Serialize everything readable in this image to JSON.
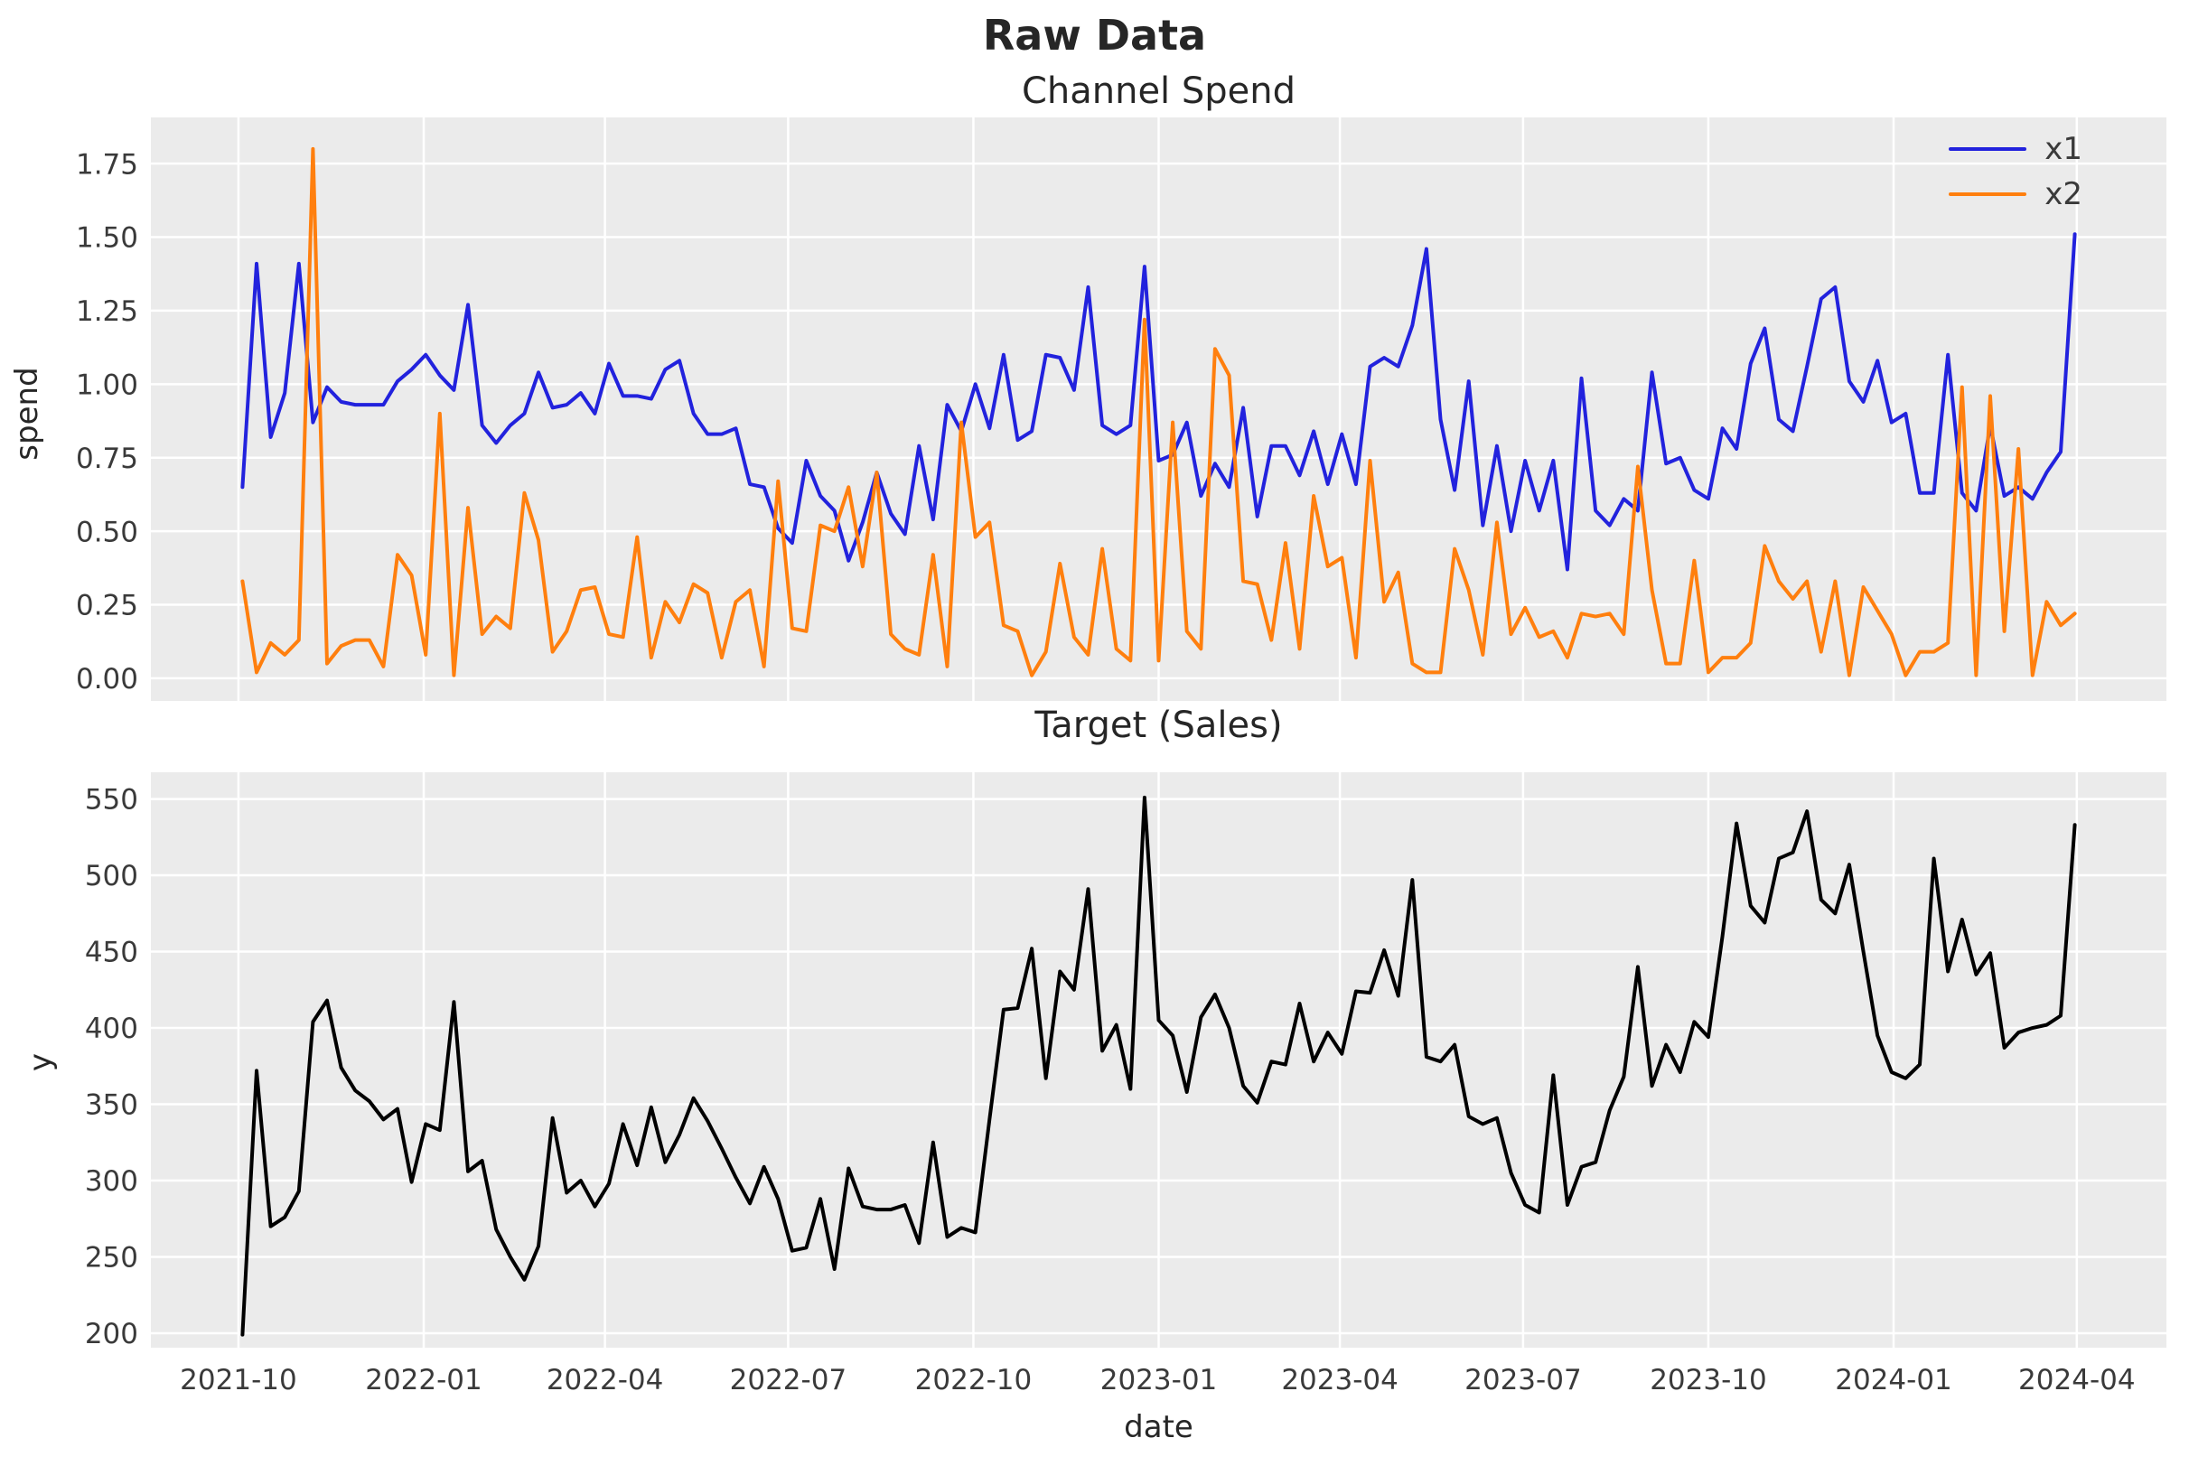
{
  "figure": {
    "suptitle": "Raw Data",
    "background": "#ffffff",
    "axes_background": "#ebebeb",
    "grid_color": "#ffffff",
    "tick_color": "#3a3a3a"
  },
  "chart_data": [
    {
      "type": "line",
      "id": "spend",
      "title": "Channel Spend",
      "ylabel": "spend",
      "grid": true,
      "legend_position": "upper right",
      "x_start_date": "2021-10-03",
      "x_freq": "weekly",
      "x_tick_labels": [
        "2021-10",
        "2022-01",
        "2022-04",
        "2022-07",
        "2022-10",
        "2023-01",
        "2023-04",
        "2023-07",
        "2023-10",
        "2024-01",
        "2024-04"
      ],
      "x_tick_day_offsets": [
        0,
        92,
        182,
        273,
        365,
        457,
        547,
        638,
        730,
        822,
        913
      ],
      "ylim": [
        -0.077,
        1.907
      ],
      "yticks": [
        0.0,
        0.25,
        0.5,
        0.75,
        1.0,
        1.25,
        1.5,
        1.75
      ],
      "ytick_labels": [
        "0.00",
        "0.25",
        "0.50",
        "0.75",
        "1.00",
        "1.25",
        "1.50",
        "1.75"
      ],
      "series": [
        {
          "name": "x1",
          "color": "#2222dd",
          "values": [
            0.65,
            1.41,
            0.82,
            0.97,
            1.41,
            0.87,
            0.99,
            0.94,
            0.93,
            0.93,
            0.93,
            1.01,
            1.05,
            1.1,
            1.03,
            0.98,
            1.27,
            0.86,
            0.8,
            0.86,
            0.9,
            1.04,
            0.92,
            0.93,
            0.97,
            0.9,
            1.07,
            0.96,
            0.96,
            0.95,
            1.05,
            1.08,
            0.9,
            0.83,
            0.83,
            0.85,
            0.66,
            0.65,
            0.51,
            0.46,
            0.74,
            0.62,
            0.57,
            0.4,
            0.53,
            0.7,
            0.56,
            0.49,
            0.79,
            0.54,
            0.93,
            0.84,
            1.0,
            0.85,
            1.1,
            0.81,
            0.84,
            1.1,
            1.09,
            0.98,
            1.33,
            0.86,
            0.83,
            0.86,
            1.4,
            0.74,
            0.76,
            0.87,
            0.62,
            0.73,
            0.65,
            0.92,
            0.55,
            0.79,
            0.79,
            0.69,
            0.84,
            0.66,
            0.83,
            0.66,
            1.06,
            1.09,
            1.06,
            1.2,
            1.46,
            0.88,
            0.64,
            1.01,
            0.52,
            0.79,
            0.5,
            0.74,
            0.57,
            0.74,
            0.37,
            1.02,
            0.57,
            0.52,
            0.61,
            0.57,
            1.04,
            0.73,
            0.75,
            0.64,
            0.61,
            0.85,
            0.78,
            1.07,
            1.19,
            0.88,
            0.84,
            1.06,
            1.29,
            1.33,
            1.01,
            0.94,
            1.08,
            0.87,
            0.9,
            0.63,
            0.63,
            1.1,
            0.63,
            0.57,
            0.86,
            0.62,
            0.65,
            0.61,
            0.7,
            0.77,
            1.51
          ]
        },
        {
          "name": "x2",
          "color": "#ff7f0e",
          "values": [
            0.33,
            0.02,
            0.12,
            0.08,
            0.13,
            1.8,
            0.05,
            0.11,
            0.13,
            0.13,
            0.04,
            0.42,
            0.35,
            0.08,
            0.9,
            0.01,
            0.58,
            0.15,
            0.21,
            0.17,
            0.63,
            0.47,
            0.09,
            0.16,
            0.3,
            0.31,
            0.15,
            0.14,
            0.48,
            0.07,
            0.26,
            0.19,
            0.32,
            0.29,
            0.07,
            0.26,
            0.3,
            0.04,
            0.67,
            0.17,
            0.16,
            0.52,
            0.5,
            0.65,
            0.38,
            0.7,
            0.15,
            0.1,
            0.08,
            0.42,
            0.04,
            0.87,
            0.48,
            0.53,
            0.18,
            0.16,
            0.01,
            0.09,
            0.39,
            0.14,
            0.08,
            0.44,
            0.1,
            0.06,
            1.22,
            0.06,
            0.87,
            0.16,
            0.1,
            1.12,
            1.03,
            0.33,
            0.32,
            0.13,
            0.46,
            0.1,
            0.62,
            0.38,
            0.41,
            0.07,
            0.74,
            0.26,
            0.36,
            0.05,
            0.02,
            0.02,
            0.44,
            0.3,
            0.08,
            0.53,
            0.15,
            0.24,
            0.14,
            0.16,
            0.07,
            0.22,
            0.21,
            0.22,
            0.15,
            0.72,
            0.3,
            0.05,
            0.05,
            0.4,
            0.02,
            0.07,
            0.07,
            0.12,
            0.45,
            0.33,
            0.27,
            0.33,
            0.09,
            0.33,
            0.01,
            0.31,
            0.23,
            0.15,
            0.01,
            0.09,
            0.09,
            0.12,
            0.99,
            0.01,
            0.96,
            0.16,
            0.78,
            0.01,
            0.26,
            0.18,
            0.22
          ]
        }
      ]
    },
    {
      "type": "line",
      "id": "sales",
      "title": "Target (Sales)",
      "ylabel": "y",
      "xlabel": "date",
      "grid": true,
      "x_start_date": "2021-10-03",
      "x_freq": "weekly",
      "x_tick_labels": [
        "2021-10",
        "2022-01",
        "2022-04",
        "2022-07",
        "2022-10",
        "2023-01",
        "2023-04",
        "2023-07",
        "2023-10",
        "2024-01",
        "2024-04"
      ],
      "x_tick_day_offsets": [
        0,
        92,
        182,
        273,
        365,
        457,
        547,
        638,
        730,
        822,
        913
      ],
      "ylim": [
        190.5,
        567.5
      ],
      "yticks": [
        200,
        250,
        300,
        350,
        400,
        450,
        500,
        550
      ],
      "ytick_labels": [
        "200",
        "250",
        "300",
        "350",
        "400",
        "450",
        "500",
        "550"
      ],
      "series": [
        {
          "name": "y",
          "color": "#000000",
          "values": [
            199,
            372,
            270,
            276,
            293,
            404,
            418,
            374,
            359,
            352,
            340,
            347,
            299,
            337,
            333,
            417,
            306,
            313,
            268,
            250,
            235,
            257,
            341,
            292,
            300,
            283,
            298,
            337,
            310,
            348,
            312,
            330,
            354,
            339,
            321,
            302,
            285,
            309,
            288,
            254,
            256,
            288,
            242,
            308,
            283,
            281,
            281,
            284,
            259,
            325,
            263,
            269,
            266,
            340,
            412,
            413,
            452,
            367,
            437,
            425,
            491,
            385,
            402,
            360,
            551,
            405,
            395,
            358,
            407,
            422,
            400,
            362,
            351,
            378,
            376,
            416,
            378,
            397,
            383,
            424,
            423,
            451,
            421,
            497,
            381,
            378,
            389,
            342,
            337,
            341,
            305,
            284,
            279,
            369,
            284,
            309,
            312,
            346,
            368,
            440,
            362,
            389,
            371,
            404,
            394,
            460,
            534,
            480,
            469,
            511,
            515,
            542,
            484,
            475,
            507,
            450,
            395,
            371,
            367,
            376,
            511,
            437,
            471,
            435,
            449,
            387,
            397,
            400,
            402,
            408,
            533
          ]
        }
      ]
    }
  ]
}
